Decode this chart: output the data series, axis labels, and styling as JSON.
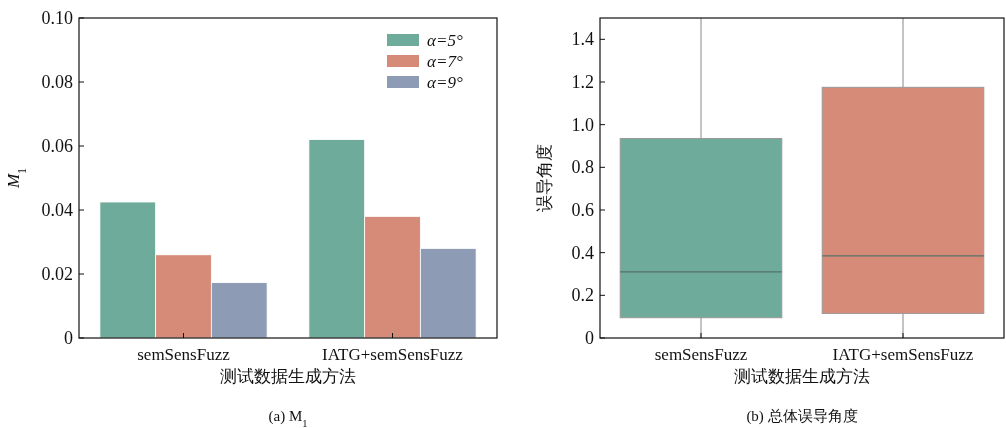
{
  "chart_data": [
    {
      "type": "bar",
      "title": "(a) M$_{1}$",
      "xlabel": "测试数据生成方法",
      "ylabel": "M$_{1}$",
      "categories": [
        "semSensFuzz",
        "IATG+semSensFuzz"
      ],
      "series": [
        {
          "name": "α=5°",
          "color": "#6fab9b",
          "values": [
            0.0425,
            0.062
          ]
        },
        {
          "name": "α=7°",
          "color": "#d68b78",
          "values": [
            0.026,
            0.038
          ]
        },
        {
          "name": "α=9°",
          "color": "#8e9bb5",
          "values": [
            0.0173,
            0.028
          ]
        }
      ],
      "ylim": [
        0,
        0.1
      ],
      "yticks": [
        {
          "value": 0,
          "label": "0"
        },
        0.02,
        0.04,
        0.06,
        0.08,
        {
          "value": 0.1,
          "label": "0.10"
        }
      ],
      "legend": "top right"
    },
    {
      "type": "box",
      "title": "(b) 总体误导角度",
      "xlabel": "测试数据生成方法",
      "ylabel": "误导角度",
      "categories": [
        "semSensFuzz",
        "IATG+semSensFuzz"
      ],
      "colors": [
        "#6fab9b",
        "#d68b78"
      ],
      "boxes": [
        {
          "low": 0,
          "q1": 0.095,
          "median": 0.31,
          "q3": 0.935,
          "high": 1.5
        },
        {
          "low": 0,
          "q1": 0.115,
          "median": 0.385,
          "q3": 1.175,
          "high": 1.5
        }
      ],
      "ylim": [
        0,
        1.5
      ],
      "yticks": [
        {
          "value": 0,
          "label": "0"
        },
        0.2,
        0.4,
        0.6,
        0.8,
        {
          "value": 1,
          "label": "1.0"
        },
        1.2,
        1.4
      ]
    }
  ]
}
